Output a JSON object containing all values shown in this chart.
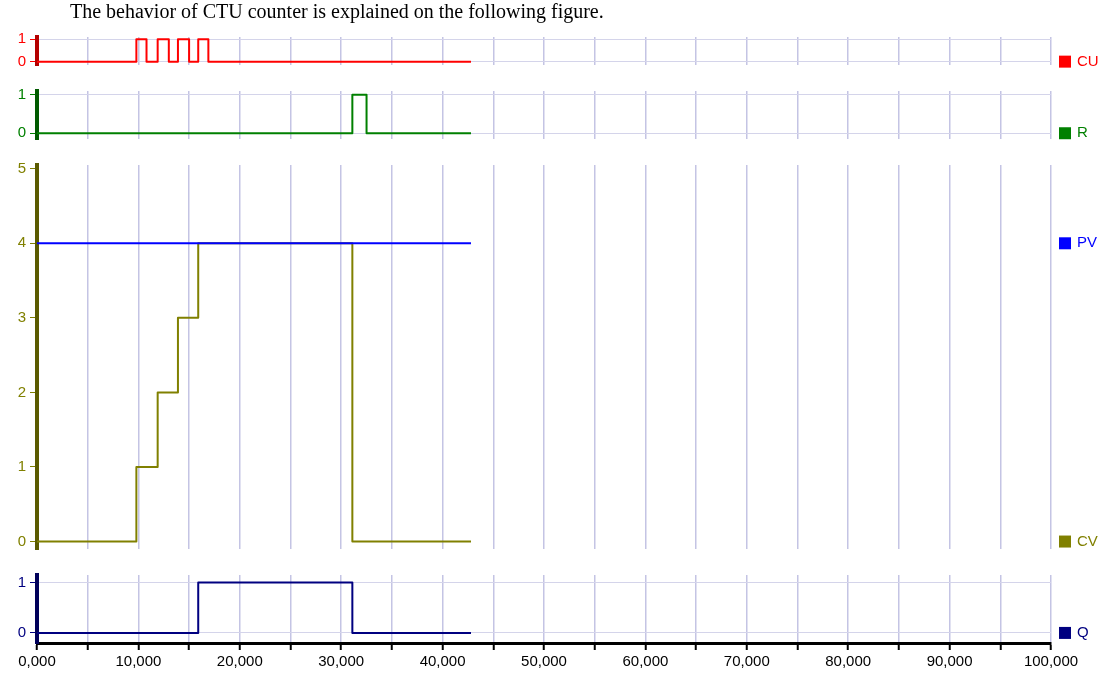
{
  "chart_data": [
    {
      "type": "step",
      "title": "The behavior of CTU counter is explained on the following figure.",
      "series": [
        {
          "name": "CU",
          "color": "#ff0000",
          "x": [
            0,
            9800,
            10800,
            11900,
            13000,
            13900,
            15000,
            15900,
            16900,
            42800
          ],
          "values": [
            0,
            1,
            0,
            1,
            0,
            1,
            0,
            1,
            0,
            0
          ]
        }
      ],
      "xlim": [
        0,
        100000
      ],
      "xticks": [
        {
          "value": 0,
          "label": null
        },
        {
          "value": 5000,
          "label": null
        },
        {
          "value": 10000,
          "label": null
        },
        {
          "value": 15000,
          "label": null
        },
        {
          "value": 20000,
          "label": null
        },
        {
          "value": 25000,
          "label": null
        },
        {
          "value": 30000,
          "label": null
        },
        {
          "value": 35000,
          "label": null
        },
        {
          "value": 40000,
          "label": null
        },
        {
          "value": 45000,
          "label": null
        },
        {
          "value": 50000,
          "label": null
        },
        {
          "value": 55000,
          "label": null
        },
        {
          "value": 60000,
          "label": null
        },
        {
          "value": 65000,
          "label": null
        },
        {
          "value": 70000,
          "label": null
        },
        {
          "value": 75000,
          "label": null
        },
        {
          "value": 80000,
          "label": null
        },
        {
          "value": 85000,
          "label": null
        },
        {
          "value": 90000,
          "label": null
        },
        {
          "value": 95000,
          "label": null
        },
        {
          "value": 100000,
          "label": null
        }
      ],
      "ylim": [
        -0.15,
        1.1
      ],
      "yticks": [
        0,
        1
      ],
      "grid": true,
      "legend": "right",
      "tick_labels": "y"
    },
    {
      "type": "step",
      "series": [
        {
          "name": "R",
          "color": "#008000",
          "x": [
            0,
            31100,
            32500,
            42800
          ],
          "values": [
            0,
            1,
            0,
            0
          ]
        }
      ],
      "xlim": [
        0,
        100000
      ],
      "xticks": [
        {
          "value": 0,
          "label": null
        },
        {
          "value": 5000,
          "label": null
        },
        {
          "value": 10000,
          "label": null
        },
        {
          "value": 15000,
          "label": null
        },
        {
          "value": 20000,
          "label": null
        },
        {
          "value": 25000,
          "label": null
        },
        {
          "value": 30000,
          "label": null
        },
        {
          "value": 35000,
          "label": null
        },
        {
          "value": 40000,
          "label": null
        },
        {
          "value": 45000,
          "label": null
        },
        {
          "value": 50000,
          "label": null
        },
        {
          "value": 55000,
          "label": null
        },
        {
          "value": 60000,
          "label": null
        },
        {
          "value": 65000,
          "label": null
        },
        {
          "value": 70000,
          "label": null
        },
        {
          "value": 75000,
          "label": null
        },
        {
          "value": 80000,
          "label": null
        },
        {
          "value": 85000,
          "label": null
        },
        {
          "value": 90000,
          "label": null
        },
        {
          "value": 95000,
          "label": null
        },
        {
          "value": 100000,
          "label": null
        }
      ],
      "ylim": [
        -0.15,
        1.1
      ],
      "yticks": [
        0,
        1
      ],
      "grid": true,
      "legend": "right",
      "tick_labels": "y"
    },
    {
      "type": "step",
      "series": [
        {
          "name": "PV",
          "color": "#0000ff",
          "x": [
            0,
            42800
          ],
          "values": [
            4,
            4
          ]
        },
        {
          "name": "CV",
          "color": "#808000",
          "x": [
            0,
            9800,
            11900,
            13900,
            15900,
            31100,
            42800
          ],
          "values": [
            0,
            1,
            2,
            3,
            4,
            0,
            0
          ]
        }
      ],
      "xlim": [
        0,
        100000
      ],
      "xticks": [
        {
          "value": 0,
          "label": null
        },
        {
          "value": 5000,
          "label": null
        },
        {
          "value": 10000,
          "label": null
        },
        {
          "value": 15000,
          "label": null
        },
        {
          "value": 20000,
          "label": null
        },
        {
          "value": 25000,
          "label": null
        },
        {
          "value": 30000,
          "label": null
        },
        {
          "value": 35000,
          "label": null
        },
        {
          "value": 40000,
          "label": null
        },
        {
          "value": 45000,
          "label": null
        },
        {
          "value": 50000,
          "label": null
        },
        {
          "value": 55000,
          "label": null
        },
        {
          "value": 60000,
          "label": null
        },
        {
          "value": 65000,
          "label": null
        },
        {
          "value": 70000,
          "label": null
        },
        {
          "value": 75000,
          "label": null
        },
        {
          "value": 80000,
          "label": null
        },
        {
          "value": 85000,
          "label": null
        },
        {
          "value": 90000,
          "label": null
        },
        {
          "value": 95000,
          "label": null
        },
        {
          "value": 100000,
          "label": null
        }
      ],
      "ylim": [
        -0.1,
        5.05
      ],
      "yticks": [
        0,
        1,
        2,
        3,
        4,
        5
      ],
      "grid": "x",
      "legend": "right",
      "tick_labels": "y"
    },
    {
      "type": "step",
      "series": [
        {
          "name": "Q",
          "color": "#000080",
          "x": [
            0,
            15900,
            31100,
            42800
          ],
          "values": [
            0,
            1,
            0,
            0
          ]
        }
      ],
      "xlim": [
        0,
        100000
      ],
      "xticks": [
        {
          "value": 0,
          "label": "0,000"
        },
        {
          "value": 5000,
          "label": null
        },
        {
          "value": 10000,
          "label": "10,000"
        },
        {
          "value": 15000,
          "label": null
        },
        {
          "value": 20000,
          "label": "20,000"
        },
        {
          "value": 25000,
          "label": null
        },
        {
          "value": 30000,
          "label": "30,000"
        },
        {
          "value": 35000,
          "label": null
        },
        {
          "value": 40000,
          "label": "40,000"
        },
        {
          "value": 45000,
          "label": null
        },
        {
          "value": 50000,
          "label": "50,000"
        },
        {
          "value": 55000,
          "label": null
        },
        {
          "value": 60000,
          "label": "60,000"
        },
        {
          "value": 65000,
          "label": null
        },
        {
          "value": 70000,
          "label": "70,000"
        },
        {
          "value": 75000,
          "label": null
        },
        {
          "value": 80000,
          "label": "80,000"
        },
        {
          "value": 85000,
          "label": null
        },
        {
          "value": 90000,
          "label": "90,000"
        },
        {
          "value": 95000,
          "label": null
        },
        {
          "value": 100000,
          "label": "100,000"
        }
      ],
      "ylim": [
        -0.2,
        1.15
      ],
      "yticks": [
        0,
        1
      ],
      "grid": true,
      "legend": "right"
    }
  ]
}
